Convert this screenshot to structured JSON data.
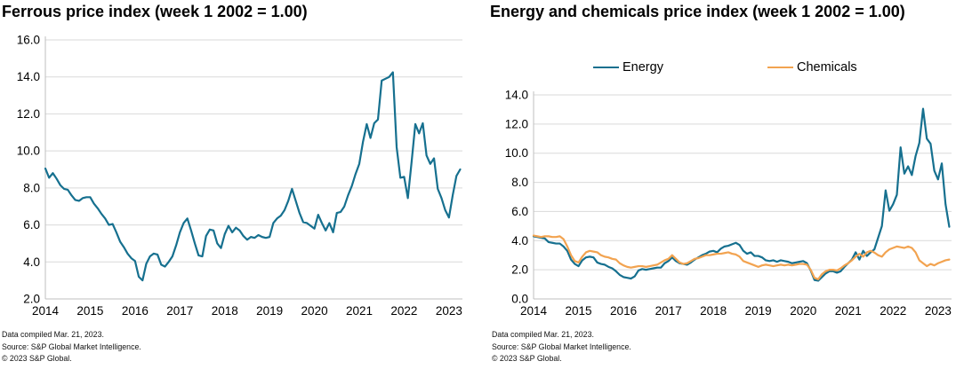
{
  "footer": {
    "line1": "Data compiled Mar. 21, 2023.",
    "line2": "Source: S&P Global Market Intelligence.",
    "line3": "© 2023 S&P Global."
  },
  "colors": {
    "teal": "#16708f",
    "orange": "#f2a350",
    "grid": "#d9d9d9",
    "axis": "#bfbfbf"
  },
  "chart_data": [
    {
      "type": "line",
      "title": "Ferrous price index (week 1 2002 = 1.00)",
      "xlabel": "",
      "ylabel": "",
      "grid": true,
      "legend_position": "none",
      "x_start": 2014,
      "x_point_step": 0.08333,
      "x_axis_end": 2023.3,
      "x_ticks": [
        "2014",
        "2015",
        "2016",
        "2017",
        "2018",
        "2019",
        "2020",
        "2021",
        "2022",
        "2023"
      ],
      "ylim": [
        2.0,
        16.0
      ],
      "y_ticks": [
        "16.0",
        "14.0",
        "12.0",
        "10.0",
        "8.0",
        "6.0",
        "4.0",
        "2.0"
      ],
      "series": [
        {
          "name": "Ferrous",
          "color": "#16708f",
          "values": [
            9.05,
            8.55,
            8.8,
            8.5,
            8.15,
            7.95,
            7.9,
            7.6,
            7.35,
            7.3,
            7.45,
            7.5,
            7.5,
            7.15,
            6.9,
            6.6,
            6.35,
            6.0,
            6.05,
            5.6,
            5.1,
            4.8,
            4.45,
            4.2,
            4.05,
            3.2,
            3.0,
            3.9,
            4.3,
            4.45,
            4.4,
            3.85,
            3.75,
            4.0,
            4.3,
            4.9,
            5.6,
            6.1,
            6.35,
            5.7,
            5.0,
            4.35,
            4.3,
            5.4,
            5.75,
            5.7,
            5.0,
            4.75,
            5.5,
            5.95,
            5.6,
            5.85,
            5.7,
            5.4,
            5.2,
            5.35,
            5.3,
            5.45,
            5.35,
            5.3,
            5.35,
            6.1,
            6.35,
            6.5,
            6.8,
            7.3,
            7.95,
            7.3,
            6.65,
            6.15,
            6.1,
            5.95,
            5.8,
            6.55,
            6.1,
            5.7,
            6.1,
            5.6,
            6.65,
            6.7,
            7.0,
            7.6,
            8.1,
            8.75,
            9.3,
            10.5,
            11.45,
            10.7,
            11.5,
            11.7,
            13.8,
            13.9,
            14.0,
            14.25,
            10.2,
            8.55,
            8.6,
            7.45,
            9.4,
            11.45,
            10.95,
            11.5,
            9.75,
            9.3,
            9.6,
            7.95,
            7.45,
            6.8,
            6.4,
            7.6,
            8.65,
            9.0
          ]
        }
      ]
    },
    {
      "type": "line",
      "title": "Energy and chemicals price index (week 1 2002 = 1.00)",
      "xlabel": "",
      "ylabel": "",
      "grid": true,
      "legend_position": "top",
      "legend": [
        {
          "label": "Energy",
          "color": "#16708f"
        },
        {
          "label": "Chemicals",
          "color": "#f2a350"
        }
      ],
      "x_start": 2014,
      "x_point_step": 0.08333,
      "x_axis_end": 2023.3,
      "x_ticks": [
        "2014",
        "2015",
        "2016",
        "2017",
        "2018",
        "2019",
        "2020",
        "2021",
        "2022",
        "2023"
      ],
      "ylim": [
        0.0,
        14.0
      ],
      "y_ticks": [
        "14.0",
        "12.0",
        "10.0",
        "8.0",
        "6.0",
        "4.0",
        "2.0",
        "0.0"
      ],
      "series": [
        {
          "name": "Energy",
          "color": "#16708f",
          "values": [
            4.3,
            4.25,
            4.2,
            4.15,
            3.9,
            3.85,
            3.8,
            3.8,
            3.6,
            3.3,
            2.7,
            2.4,
            2.25,
            2.65,
            2.85,
            2.9,
            2.85,
            2.5,
            2.4,
            2.35,
            2.2,
            2.1,
            1.9,
            1.65,
            1.5,
            1.45,
            1.4,
            1.55,
            1.95,
            2.05,
            2.0,
            2.05,
            2.1,
            2.15,
            2.15,
            2.45,
            2.6,
            2.85,
            2.6,
            2.45,
            2.4,
            2.35,
            2.5,
            2.7,
            2.85,
            3.0,
            3.1,
            3.25,
            3.3,
            3.2,
            3.45,
            3.6,
            3.65,
            3.75,
            3.85,
            3.7,
            3.3,
            3.1,
            3.2,
            2.95,
            2.95,
            2.85,
            2.65,
            2.6,
            2.65,
            2.55,
            2.65,
            2.6,
            2.55,
            2.45,
            2.5,
            2.55,
            2.6,
            2.45,
            1.95,
            1.3,
            1.25,
            1.5,
            1.75,
            1.9,
            1.9,
            1.8,
            1.9,
            2.2,
            2.45,
            2.7,
            3.2,
            2.7,
            3.3,
            2.95,
            3.2,
            3.4,
            4.2,
            5.0,
            7.45,
            6.05,
            6.5,
            7.15,
            10.4,
            8.6,
            9.1,
            8.5,
            9.8,
            10.7,
            13.05,
            11.0,
            10.65,
            8.8,
            8.2,
            9.3,
            6.5,
            4.95
          ]
        },
        {
          "name": "Chemicals",
          "color": "#f2a350",
          "values": [
            4.35,
            4.3,
            4.25,
            4.3,
            4.3,
            4.25,
            4.25,
            4.3,
            4.1,
            3.6,
            3.0,
            2.6,
            2.5,
            2.9,
            3.2,
            3.3,
            3.25,
            3.2,
            3.0,
            2.9,
            2.85,
            2.75,
            2.7,
            2.45,
            2.3,
            2.2,
            2.15,
            2.2,
            2.25,
            2.25,
            2.2,
            2.25,
            2.3,
            2.35,
            2.5,
            2.65,
            2.75,
            3.0,
            2.75,
            2.5,
            2.4,
            2.45,
            2.6,
            2.75,
            2.8,
            2.9,
            3.0,
            3.0,
            3.05,
            3.1,
            3.1,
            3.15,
            3.2,
            3.1,
            3.05,
            2.9,
            2.6,
            2.5,
            2.4,
            2.3,
            2.2,
            2.3,
            2.35,
            2.3,
            2.25,
            2.3,
            2.35,
            2.3,
            2.35,
            2.3,
            2.35,
            2.4,
            2.4,
            2.35,
            2.0,
            1.45,
            1.35,
            1.7,
            1.9,
            2.0,
            2.0,
            1.95,
            2.1,
            2.3,
            2.45,
            2.65,
            2.9,
            3.1,
            2.9,
            3.2,
            3.3,
            3.18,
            3.0,
            2.9,
            3.2,
            3.4,
            3.5,
            3.6,
            3.55,
            3.5,
            3.6,
            3.5,
            3.2,
            2.65,
            2.45,
            2.25,
            2.4,
            2.3,
            2.45,
            2.55,
            2.65,
            2.7
          ]
        }
      ]
    }
  ]
}
